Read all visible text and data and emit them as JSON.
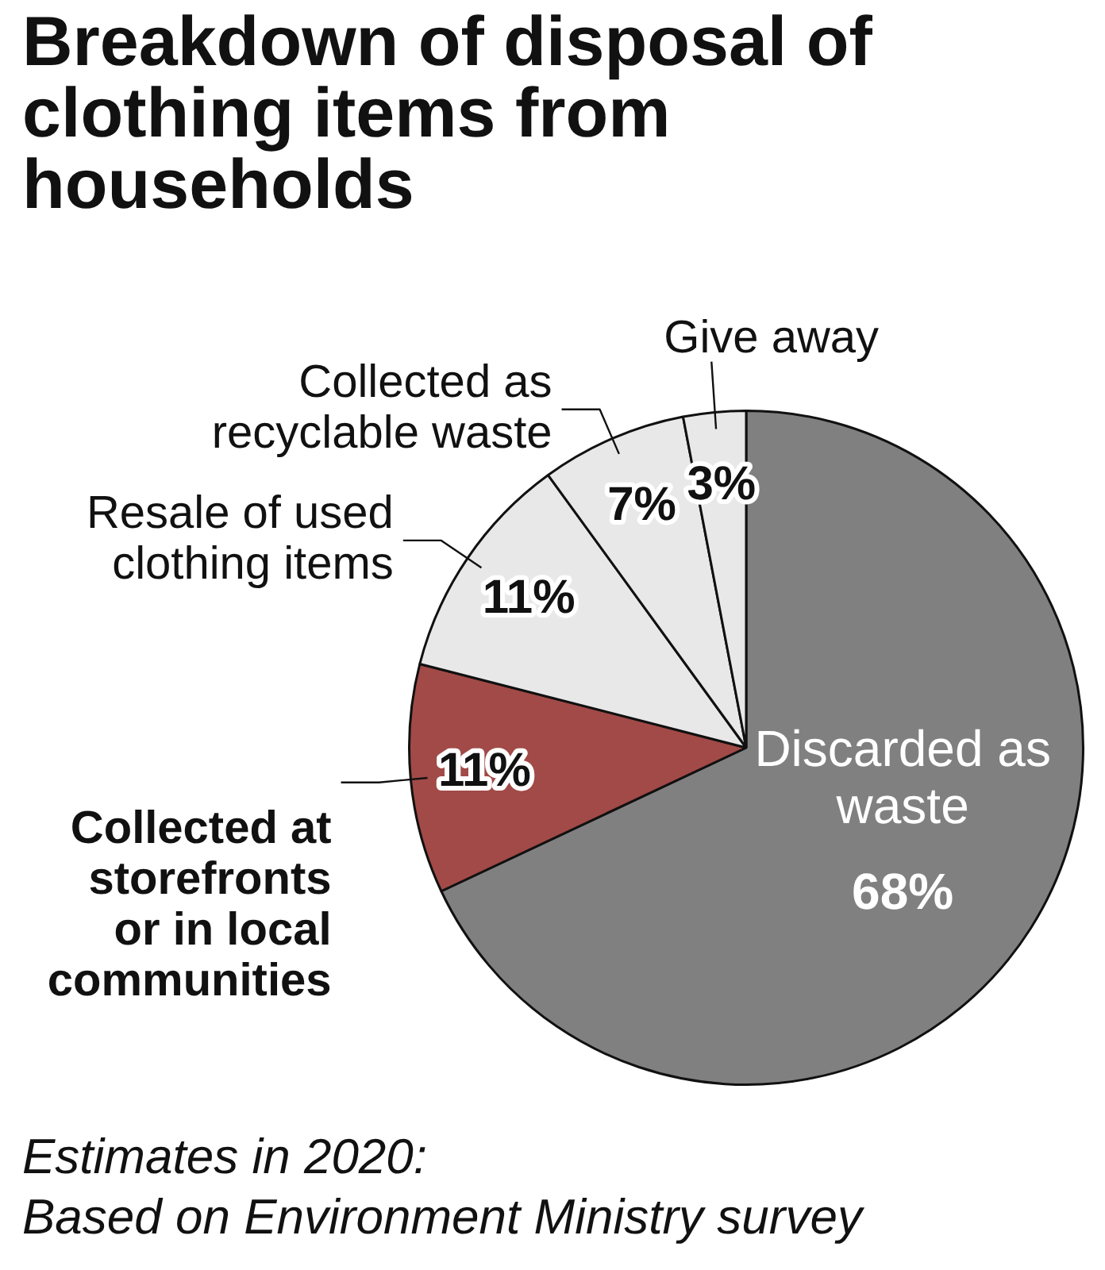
{
  "chart_data": {
    "type": "pie",
    "title": "Breakdown of disposal of clothing items from households",
    "categories": [
      "Discarded as waste",
      "Collected at storefronts or in local communities",
      "Resale of used clothing items",
      "Collected as recyclable waste",
      "Give away"
    ],
    "values": [
      68,
      11,
      11,
      7,
      3
    ],
    "colors": [
      "#808080",
      "#a14a47",
      "#e8e8e8",
      "#e8e8e8",
      "#e8e8e8"
    ],
    "value_labels": [
      "68%",
      "11%",
      "11%",
      "7%",
      "3%"
    ],
    "annotations": [
      "Estimates in 2020:",
      "Based on Environment Ministry survey"
    ]
  }
}
